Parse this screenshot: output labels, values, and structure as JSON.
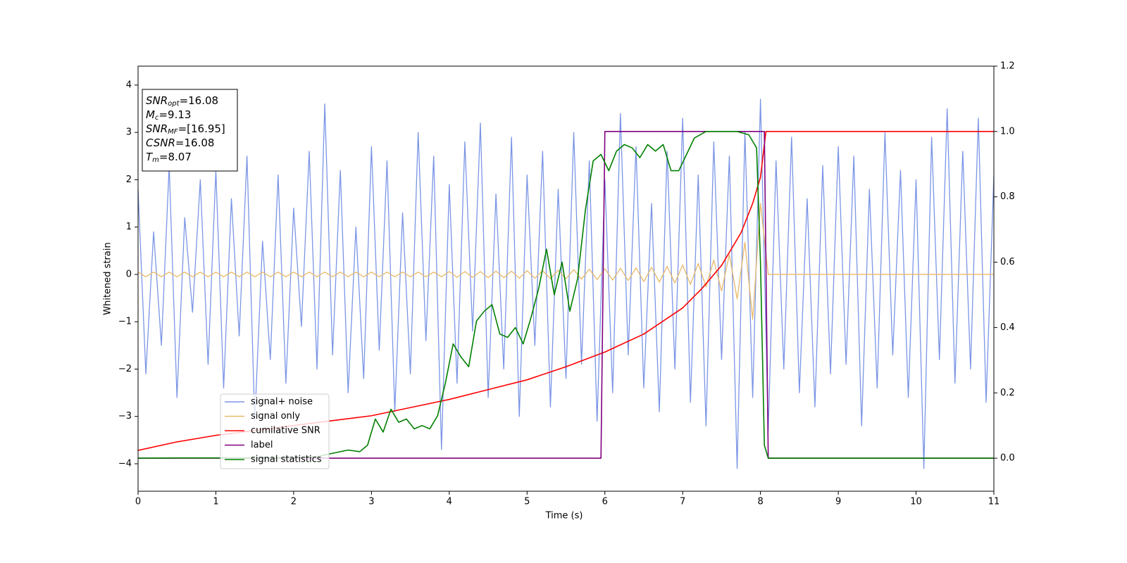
{
  "chart_data": {
    "type": "line",
    "xlabel": "Time (s)",
    "ylabel": "Whitened strain",
    "xlim": [
      0,
      11
    ],
    "xticks": [
      0,
      1,
      2,
      3,
      4,
      5,
      6,
      7,
      8,
      9,
      10,
      11
    ],
    "ylim": [
      -4.58,
      4.4
    ],
    "yticks": [
      {
        "value": -4,
        "label": "−4"
      },
      {
        "value": -3,
        "label": "−3"
      },
      {
        "value": -2,
        "label": "−2"
      },
      {
        "value": -1,
        "label": "−1"
      },
      0,
      1,
      2,
      3,
      4
    ],
    "y2lim": [
      -0.101,
      1.2
    ],
    "y2ticks": [
      {
        "value": 0,
        "label": "0.0"
      },
      {
        "value": 0.2,
        "label": "0.2"
      },
      {
        "value": 0.4,
        "label": "0.4"
      },
      {
        "value": 0.6,
        "label": "0.6"
      },
      {
        "value": 0.8,
        "label": "0.8"
      },
      {
        "value": 1,
        "label": "1.0"
      },
      {
        "value": 1.2,
        "label": "1.2"
      }
    ],
    "x": [
      0,
      0.1,
      0.2,
      0.3,
      0.4,
      0.5,
      0.6,
      0.7,
      0.8,
      0.9,
      1,
      1.1,
      1.2,
      1.3,
      1.4,
      1.5,
      1.6,
      1.7,
      1.8,
      1.9,
      2,
      2.1,
      2.2,
      2.3,
      2.4,
      2.5,
      2.6,
      2.7,
      2.8,
      2.9,
      3,
      3.1,
      3.2,
      3.3,
      3.4,
      3.5,
      3.6,
      3.7,
      3.8,
      3.9,
      4,
      4.1,
      4.2,
      4.3,
      4.4,
      4.5,
      4.6,
      4.7,
      4.8,
      4.9,
      5,
      5.1,
      5.2,
      5.3,
      5.4,
      5.5,
      5.6,
      5.7,
      5.8,
      5.9,
      6,
      6.1,
      6.2,
      6.3,
      6.4,
      6.5,
      6.6,
      6.7,
      6.8,
      6.9,
      7,
      7.1,
      7.2,
      7.3,
      7.4,
      7.5,
      7.6,
      7.7,
      7.8,
      7.9,
      8,
      8.1,
      8.2,
      8.3,
      8.4,
      8.5,
      8.6,
      8.7,
      8.8,
      8.9,
      9,
      9.1,
      9.2,
      9.3,
      9.4,
      9.5,
      9.6,
      9.7,
      9.8,
      9.9,
      10,
      10.1,
      10.2,
      10.3,
      10.4,
      10.5,
      10.6,
      10.7,
      10.8,
      10.9,
      11
    ],
    "series": [
      {
        "name": "signal+ noise",
        "color": "#7b95e6",
        "values": [
          1.8,
          -2.1,
          0.9,
          -1.5,
          2.3,
          -2.6,
          1.2,
          -0.8,
          2.0,
          -1.9,
          2.2,
          -2.4,
          1.6,
          -1.3,
          2.5,
          -3.1,
          0.7,
          -1.8,
          2.1,
          -2.3,
          1.4,
          -1.1,
          2.6,
          -2.0,
          3.6,
          -1.7,
          2.2,
          -2.5,
          1.0,
          -2.2,
          2.7,
          -1.6,
          2.4,
          -2.9,
          1.3,
          -2.1,
          3.0,
          -1.4,
          2.5,
          -3.7,
          1.9,
          -2.3,
          2.8,
          -1.2,
          3.2,
          -2.6,
          1.7,
          -2.0,
          2.9,
          -3.0,
          2.1,
          -1.5,
          2.6,
          -2.8,
          1.8,
          -2.2,
          3.0,
          -1.9,
          2.4,
          -3.1,
          2.0,
          -2.5,
          3.4,
          -1.7,
          2.7,
          -2.4,
          1.5,
          -2.9,
          2.6,
          -2.0,
          3.3,
          -2.7,
          2.1,
          -3.2,
          2.8,
          -1.8,
          2.5,
          -4.1,
          3.0,
          -2.6,
          3.7,
          -3.3,
          2.4,
          -2.0,
          2.9,
          -2.5,
          1.6,
          -2.8,
          2.3,
          -2.1,
          2.7,
          -1.9,
          2.5,
          -3.2,
          1.8,
          -2.4,
          3.0,
          -1.7,
          2.2,
          -2.6,
          2.0,
          -4.1,
          2.9,
          -1.8,
          3.5,
          -2.3,
          2.6,
          -2.0,
          3.3,
          -2.7,
          2.1
        ]
      },
      {
        "name": "signal only",
        "color": "#e8b96a",
        "values": [
          0.05,
          -0.05,
          0.05,
          -0.05,
          0.05,
          -0.05,
          0.05,
          -0.05,
          0.05,
          -0.05,
          0.05,
          -0.05,
          0.05,
          -0.05,
          0.05,
          -0.05,
          0.05,
          -0.05,
          0.05,
          -0.05,
          0.05,
          -0.05,
          0.05,
          -0.05,
          0.05,
          -0.05,
          0.05,
          -0.05,
          0.05,
          -0.05,
          0.05,
          -0.05,
          0.05,
          -0.05,
          0.05,
          -0.05,
          0.05,
          -0.05,
          0.05,
          -0.05,
          0.06,
          -0.06,
          0.06,
          -0.06,
          0.06,
          -0.07,
          0.07,
          -0.07,
          0.07,
          -0.08,
          0.08,
          -0.08,
          0.08,
          -0.09,
          0.09,
          -0.09,
          0.1,
          -0.1,
          0.11,
          -0.11,
          0.12,
          -0.12,
          0.13,
          -0.13,
          0.14,
          -0.15,
          0.15,
          -0.16,
          0.17,
          -0.18,
          0.2,
          -0.21,
          0.23,
          -0.26,
          0.3,
          -0.35,
          0.42,
          -0.52,
          0.68,
          -0.95,
          1.5,
          0,
          0,
          0,
          0,
          0,
          0,
          0,
          0,
          0,
          0,
          0,
          0,
          0,
          0,
          0,
          0,
          0,
          0,
          0,
          0,
          0,
          0,
          0,
          0,
          0,
          0,
          0,
          0,
          0,
          0
        ]
      },
      {
        "name": "cumilative SNR",
        "color": "#ff0000",
        "axis": "y2",
        "x": [
          0,
          0.5,
          1,
          1.5,
          2,
          2.5,
          3,
          3.5,
          4,
          4.5,
          5,
          5.5,
          6,
          6.5,
          7,
          7.25,
          7.5,
          7.75,
          7.9,
          8.0,
          8.07,
          8.5,
          9,
          9.5,
          10,
          10.5,
          11
        ],
        "values": [
          0.024,
          0.05,
          0.07,
          0.085,
          0.1,
          0.115,
          0.13,
          0.155,
          0.18,
          0.21,
          0.24,
          0.28,
          0.325,
          0.38,
          0.46,
          0.52,
          0.59,
          0.69,
          0.78,
          0.86,
          1.0,
          1.0,
          1.0,
          1.0,
          1.0,
          1.0,
          1.0
        ]
      },
      {
        "name": "label",
        "color": "#800080",
        "axis": "y2",
        "x": [
          0,
          5.95,
          6.0,
          8.05,
          8.1,
          11
        ],
        "values": [
          0,
          0,
          1,
          1,
          0,
          0
        ]
      },
      {
        "name": "signal statistics",
        "color": "#008000",
        "axis": "y2",
        "x": [
          0,
          0.5,
          1,
          1.5,
          2,
          2.3,
          2.5,
          2.7,
          2.85,
          2.95,
          3.05,
          3.15,
          3.25,
          3.35,
          3.45,
          3.55,
          3.65,
          3.75,
          3.85,
          3.95,
          4.05,
          4.15,
          4.25,
          4.35,
          4.45,
          4.55,
          4.65,
          4.75,
          4.85,
          4.95,
          5.05,
          5.15,
          5.25,
          5.35,
          5.45,
          5.55,
          5.65,
          5.75,
          5.85,
          5.95,
          6.05,
          6.15,
          6.25,
          6.35,
          6.45,
          6.55,
          6.65,
          6.75,
          6.85,
          6.95,
          7.05,
          7.15,
          7.3,
          7.5,
          7.7,
          7.85,
          7.95,
          8.0,
          8.05,
          8.1,
          8.5,
          9,
          10,
          11
        ],
        "values": [
          0,
          0.001,
          0.001,
          0.001,
          0.002,
          0.005,
          0.015,
          0.025,
          0.02,
          0.04,
          0.12,
          0.08,
          0.15,
          0.11,
          0.12,
          0.09,
          0.1,
          0.09,
          0.13,
          0.23,
          0.35,
          0.31,
          0.28,
          0.42,
          0.45,
          0.47,
          0.38,
          0.37,
          0.4,
          0.35,
          0.43,
          0.52,
          0.64,
          0.5,
          0.6,
          0.45,
          0.55,
          0.76,
          0.91,
          0.93,
          0.88,
          0.94,
          0.96,
          0.95,
          0.92,
          0.96,
          0.94,
          0.96,
          0.88,
          0.88,
          0.93,
          0.98,
          1.0,
          1.0,
          1.0,
          0.99,
          0.95,
          0.6,
          0.04,
          0.0,
          0.0,
          0.0,
          0.0,
          0.0
        ]
      }
    ],
    "annotation": [
      {
        "symbol": "SNR",
        "sub": "opt",
        "text": "=16.08"
      },
      {
        "symbol": "M",
        "sub": "c",
        "text": "=9.13"
      },
      {
        "symbol": "SNR",
        "sub": "MF",
        "text": "=[16.95]"
      },
      {
        "symbol": "CSNR",
        "text": "=16.08"
      },
      {
        "symbol": "T",
        "sub": "m",
        "text": "=8.07"
      }
    ]
  }
}
